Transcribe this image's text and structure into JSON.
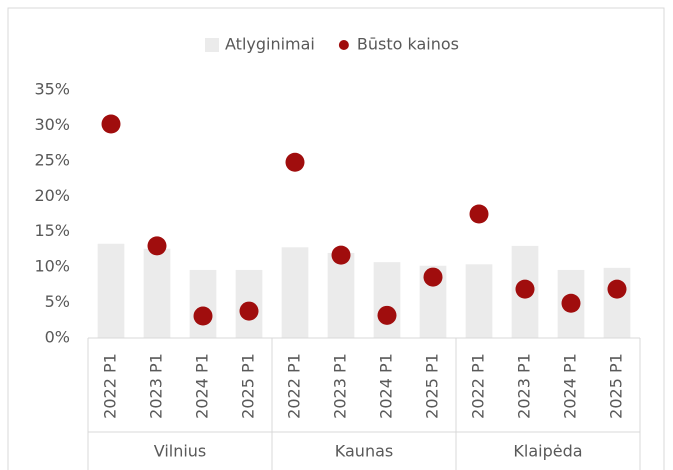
{
  "chart_data": {
    "type": "bar_dot",
    "categories": [
      "2022 P1",
      "2023 P1",
      "2024 P1",
      "2025 P1",
      "2022 P1",
      "2023 P1",
      "2024 P1",
      "2025 P1",
      "2022 P1",
      "2023 P1",
      "2024 P1",
      "2025 P1"
    ],
    "groups": [
      "Vilnius",
      "Kaunas",
      "Klaipėda"
    ],
    "series": [
      {
        "name": "Atlyginimai",
        "color": "#ebebeb",
        "kind": "bar",
        "values": [
          13.3,
          12.6,
          9.6,
          9.6,
          12.8,
          12.0,
          10.7,
          10.2,
          10.4,
          13.0,
          9.6,
          9.9
        ]
      },
      {
        "name": "Būsto kainos",
        "color": "#a00d0d",
        "kind": "dot",
        "values": [
          30.2,
          13.0,
          3.1,
          3.8,
          24.8,
          11.7,
          3.2,
          8.6,
          17.5,
          6.9,
          4.9,
          6.9
        ]
      }
    ],
    "ylim": [
      0,
      35
    ],
    "yticks": [
      {
        "value": 0,
        "label": "0%"
      },
      {
        "value": 5,
        "label": "5%"
      },
      {
        "value": 10,
        "label": "10%"
      },
      {
        "value": 15,
        "label": "15%"
      },
      {
        "value": 20,
        "label": "20%"
      },
      {
        "value": 25,
        "label": "25%"
      },
      {
        "value": 30,
        "label": "30%"
      },
      {
        "value": 35,
        "label": "35%"
      }
    ],
    "grid": false,
    "legend": "top"
  }
}
